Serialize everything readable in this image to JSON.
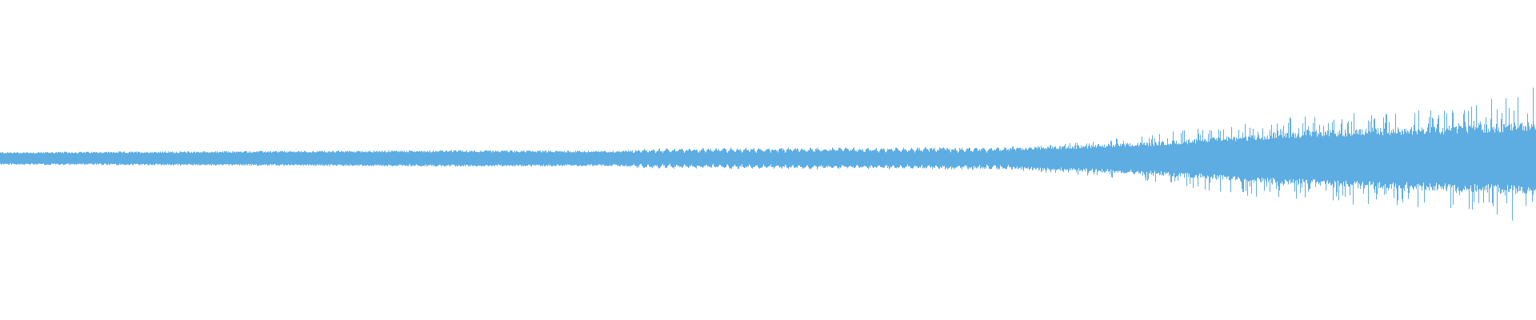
{
  "chart_data": {
    "type": "area",
    "kind": "audio-waveform",
    "color": "#5dade2",
    "background": "#ffffff",
    "grid": false,
    "legend": "none",
    "ylim": [
      -1,
      1
    ],
    "xlim": [
      0,
      1
    ],
    "envelope": {
      "x": [
        0.0,
        0.15,
        0.3,
        0.4,
        0.42,
        0.5,
        0.65,
        0.7,
        0.75,
        0.8,
        0.85,
        0.9,
        0.95,
        1.0
      ],
      "amplitude": [
        0.035,
        0.04,
        0.045,
        0.042,
        0.05,
        0.055,
        0.055,
        0.07,
        0.09,
        0.12,
        0.15,
        0.17,
        0.18,
        0.2
      ],
      "peak_amplitude": [
        0.04,
        0.045,
        0.05,
        0.048,
        0.06,
        0.07,
        0.07,
        0.1,
        0.15,
        0.22,
        0.28,
        0.3,
        0.32,
        0.45
      ]
    }
  }
}
